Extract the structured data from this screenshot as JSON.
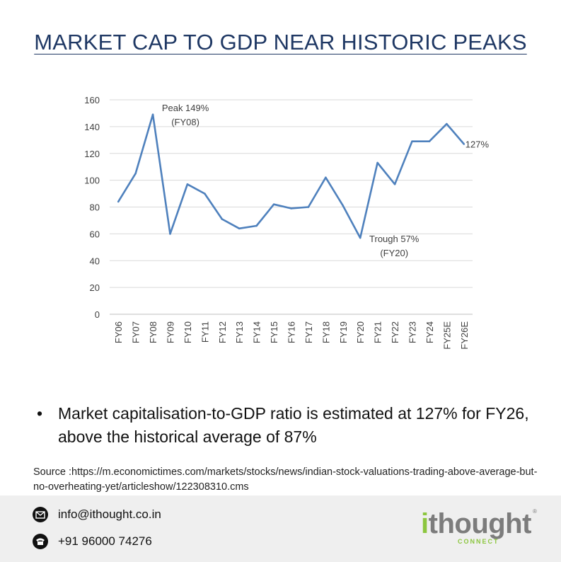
{
  "title": "MARKET CAP TO GDP NEAR HISTORIC PEAKS",
  "chart_data": {
    "type": "line",
    "categories": [
      "FY06",
      "FY07",
      "FY08",
      "FY09",
      "FY10",
      "FY11",
      "FY12",
      "FY13",
      "FY14",
      "FY15",
      "FY16",
      "FY17",
      "FY18",
      "FY19",
      "FY20",
      "FY21",
      "FY22",
      "FY23",
      "FY24",
      "FY25E",
      "FY26E"
    ],
    "values": [
      84,
      105,
      149,
      60,
      97,
      90,
      71,
      64,
      66,
      82,
      79,
      80,
      102,
      81,
      57,
      113,
      97,
      129,
      129,
      142,
      127
    ],
    "ylim": [
      0,
      160
    ],
    "yticks": [
      0,
      20,
      40,
      60,
      80,
      100,
      120,
      140,
      160
    ],
    "grid": true,
    "line_color": "#4f81bd",
    "annotations": [
      {
        "category": "FY08",
        "lines": [
          "Peak 149%",
          "(FY08)"
        ]
      },
      {
        "category": "FY20",
        "lines": [
          "Trough 57%",
          "(FY20)"
        ]
      },
      {
        "category": "FY26E",
        "lines": [
          "127%"
        ]
      }
    ]
  },
  "bullet": {
    "marker": "•",
    "text": "Market capitalisation-to-GDP ratio is estimated at 127% for FY26, above the historical average of 87%"
  },
  "source": "Source :https://m.economictimes.com/markets/stocks/news/indian-stock-valuations-trading-above-average-but-no-overheating-yet/articleshow/122308310.cms",
  "footer": {
    "email": "info@ithought.co.in",
    "phone": "+91 96000 74276",
    "logo_text": "ithought",
    "logo_sub": "CONNECT",
    "email_icon": "email-icon",
    "phone_icon": "phone-icon"
  }
}
